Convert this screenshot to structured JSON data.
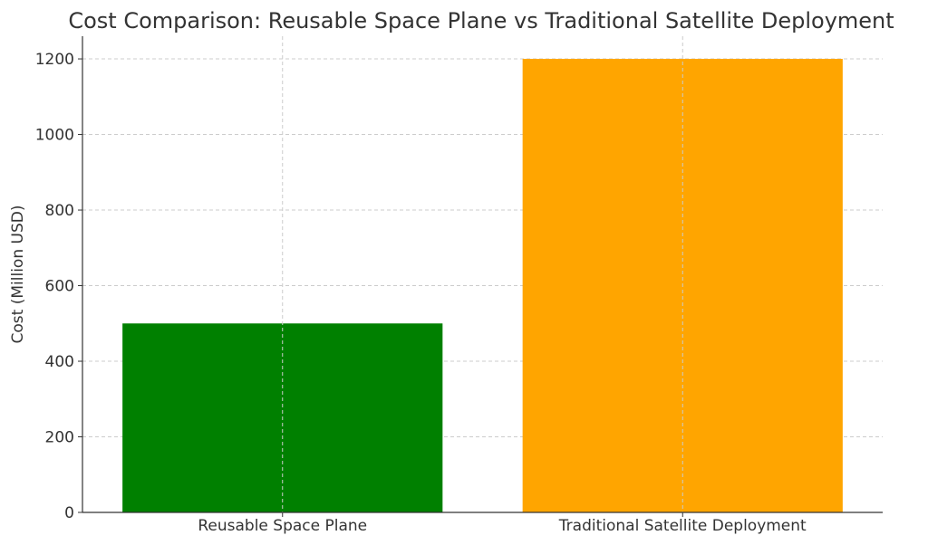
{
  "chart_data": {
    "type": "bar",
    "title": "Cost Comparison: Reusable Space Plane vs Traditional Satellite Deployment",
    "xlabel": "",
    "ylabel": "Cost (Million USD)",
    "categories": [
      "Reusable Space Plane",
      "Traditional Satellite Deployment"
    ],
    "values": [
      500,
      1200
    ],
    "colors": [
      "#008000",
      "#ffa500"
    ],
    "ylim": [
      0,
      1260
    ],
    "yticks": [
      0,
      200,
      400,
      600,
      800,
      1000,
      1200
    ],
    "grid": true
  }
}
